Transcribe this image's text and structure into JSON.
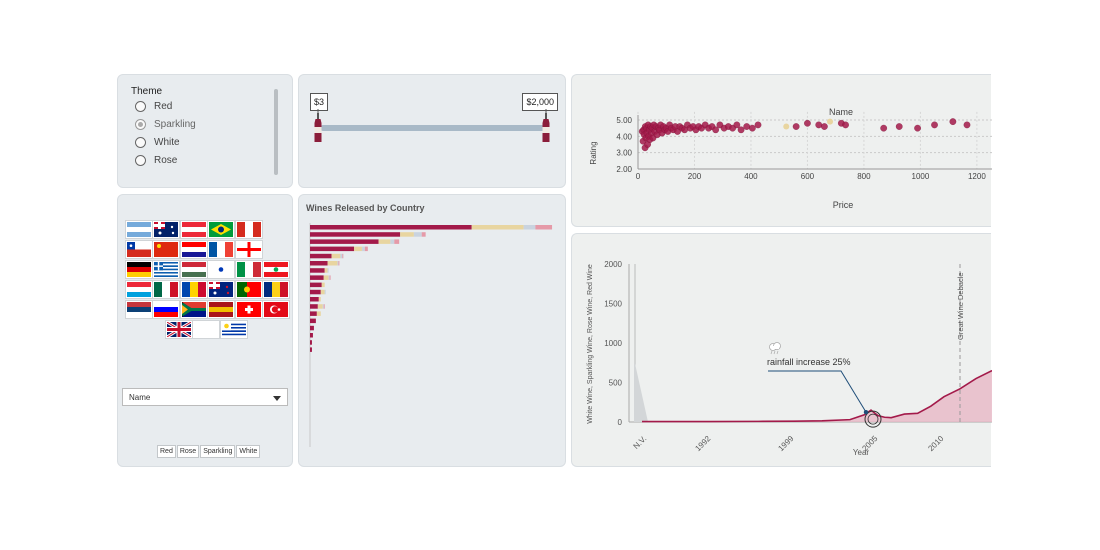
{
  "theme": {
    "title": "Theme",
    "options": [
      "Red",
      "Sparkling",
      "White",
      "Rose"
    ],
    "selected": "Sparkling"
  },
  "price_range": {
    "min_label": "$3",
    "max_label": "$2,000"
  },
  "flags": {
    "rows": [
      [
        "argentina",
        "australia",
        "austria",
        "brazil",
        "canada"
      ],
      [
        "chile",
        "china",
        "croatia",
        "france",
        "georgia"
      ],
      [
        "germany",
        "greece",
        "hungary",
        "israel",
        "italy",
        "lebanon"
      ],
      [
        "luxembourg",
        "mexico",
        "moldova",
        "new-zealand",
        "portugal",
        "romania"
      ],
      [
        "serbia",
        "slovenia",
        "south-africa",
        "spain",
        "switzerland",
        "turkey"
      ],
      [
        "united-kingdom",
        "",
        "uruguay"
      ]
    ],
    "dropdown_value": "Name",
    "wine_buttons": [
      "Red",
      "Rose",
      "Sparkling",
      "White"
    ]
  },
  "country_chart": {
    "title": "Wines Released by Country"
  },
  "colors": {
    "red": "#a31a4a",
    "sparkling": "#e8d5a0",
    "rose": "#e59aa8",
    "white": "#c9d3df",
    "accent": "#1f4e79"
  },
  "chart_data": [
    {
      "type": "bar",
      "title": "Wines Released by Country",
      "orientation": "horizontal",
      "stacked": true,
      "series_order": [
        "Red",
        "Sparkling",
        "White",
        "Rose"
      ],
      "bars": [
        [
          165,
          53,
          12,
          17
        ],
        [
          92,
          14,
          8,
          4
        ],
        [
          70,
          12,
          4,
          5
        ],
        [
          45,
          8,
          3,
          3
        ],
        [
          22,
          9,
          2,
          1
        ],
        [
          18,
          10,
          1,
          1
        ],
        [
          15,
          3,
          1,
          0
        ],
        [
          14,
          5,
          1,
          1
        ],
        [
          12,
          3,
          0,
          0
        ],
        [
          11,
          4,
          1,
          0
        ],
        [
          9,
          2,
          0,
          0
        ],
        [
          8,
          5,
          1,
          1
        ],
        [
          7,
          4,
          0,
          0
        ],
        [
          6,
          0,
          0,
          0
        ],
        [
          4,
          0,
          0,
          0
        ],
        [
          3,
          0,
          0,
          0
        ],
        [
          2,
          0,
          0,
          0
        ],
        [
          2,
          0,
          0,
          0
        ]
      ]
    },
    {
      "type": "scatter",
      "title": "Name",
      "xlabel": "Price",
      "ylabel": "Rating",
      "xlim": [
        0,
        1250
      ],
      "ylim": [
        2.0,
        5.5
      ],
      "xticks": [
        "0",
        "200",
        "400",
        "600",
        "800",
        "1000",
        "1200"
      ],
      "yticks": [
        "2.00",
        "3.00",
        "4.00",
        "5.00"
      ],
      "points": [
        [
          15,
          4.3
        ],
        [
          18,
          3.7
        ],
        [
          20,
          4.4
        ],
        [
          22,
          4.1
        ],
        [
          25,
          3.3
        ],
        [
          26,
          4.6
        ],
        [
          28,
          3.9
        ],
        [
          30,
          4.5
        ],
        [
          32,
          4.2
        ],
        [
          34,
          3.5
        ],
        [
          36,
          4.7
        ],
        [
          38,
          4.0
        ],
        [
          40,
          4.4
        ],
        [
          42,
          3.8
        ],
        [
          45,
          4.6
        ],
        [
          48,
          4.2
        ],
        [
          50,
          4.5
        ],
        [
          53,
          3.9
        ],
        [
          56,
          4.7
        ],
        [
          60,
          4.3
        ],
        [
          64,
          4.6
        ],
        [
          68,
          4.1
        ],
        [
          72,
          4.5
        ],
        [
          76,
          4.4
        ],
        [
          80,
          4.7
        ],
        [
          85,
          4.2
        ],
        [
          90,
          4.6
        ],
        [
          95,
          4.4
        ],
        [
          100,
          4.5
        ],
        [
          106,
          4.3
        ],
        [
          112,
          4.7
        ],
        [
          118,
          4.5
        ],
        [
          125,
          4.4
        ],
        [
          132,
          4.6
        ],
        [
          140,
          4.3
        ],
        [
          148,
          4.6
        ],
        [
          156,
          4.5
        ],
        [
          165,
          4.4
        ],
        [
          175,
          4.7
        ],
        [
          185,
          4.5
        ],
        [
          195,
          4.6
        ],
        [
          205,
          4.4
        ],
        [
          215,
          4.6
        ],
        [
          225,
          4.5
        ],
        [
          238,
          4.7
        ],
        [
          250,
          4.5
        ],
        [
          262,
          4.6
        ],
        [
          275,
          4.4
        ],
        [
          290,
          4.7
        ],
        [
          305,
          4.5
        ],
        [
          320,
          4.6
        ],
        [
          335,
          4.5
        ],
        [
          350,
          4.7
        ],
        [
          365,
          4.4
        ],
        [
          385,
          4.6
        ],
        [
          405,
          4.5
        ],
        [
          425,
          4.7
        ],
        [
          560,
          4.6
        ],
        [
          600,
          4.8
        ],
        [
          640,
          4.7
        ],
        [
          660,
          4.6
        ],
        [
          720,
          4.8
        ],
        [
          735,
          4.7
        ],
        [
          870,
          4.5
        ],
        [
          925,
          4.6
        ],
        [
          990,
          4.5
        ],
        [
          1050,
          4.7
        ],
        [
          1115,
          4.9
        ],
        [
          1165,
          4.7
        ]
      ],
      "highlight_points": [
        [
          525,
          4.6
        ],
        [
          680,
          4.9
        ]
      ]
    },
    {
      "type": "area",
      "xlabel": "Year",
      "ylabel": "White Wine, Sparkling Wine, Rose Wine, Red Wine",
      "ylim": [
        0,
        2000
      ],
      "yticks": [
        "0",
        "500",
        "1000",
        "1500",
        "2000"
      ],
      "xticks": [
        "N.V.",
        "1992",
        "1999",
        "2005",
        "2010"
      ],
      "nv_value": 740,
      "years": [
        1985,
        1988,
        1992,
        1996,
        1999,
        2001,
        2003,
        2004,
        2004.5,
        2005,
        2005.5,
        2006,
        2007,
        2008,
        2009,
        2010,
        2011,
        2012,
        2013
      ],
      "values": [
        5,
        5,
        5,
        8,
        10,
        15,
        30,
        90,
        150,
        80,
        60,
        55,
        100,
        110,
        200,
        320,
        420,
        550,
        650
      ],
      "annotation": {
        "year": 2004,
        "text": "rainfall increase 25%"
      },
      "event": {
        "year": 2011,
        "text": "Great Wine Debacle"
      }
    }
  ]
}
